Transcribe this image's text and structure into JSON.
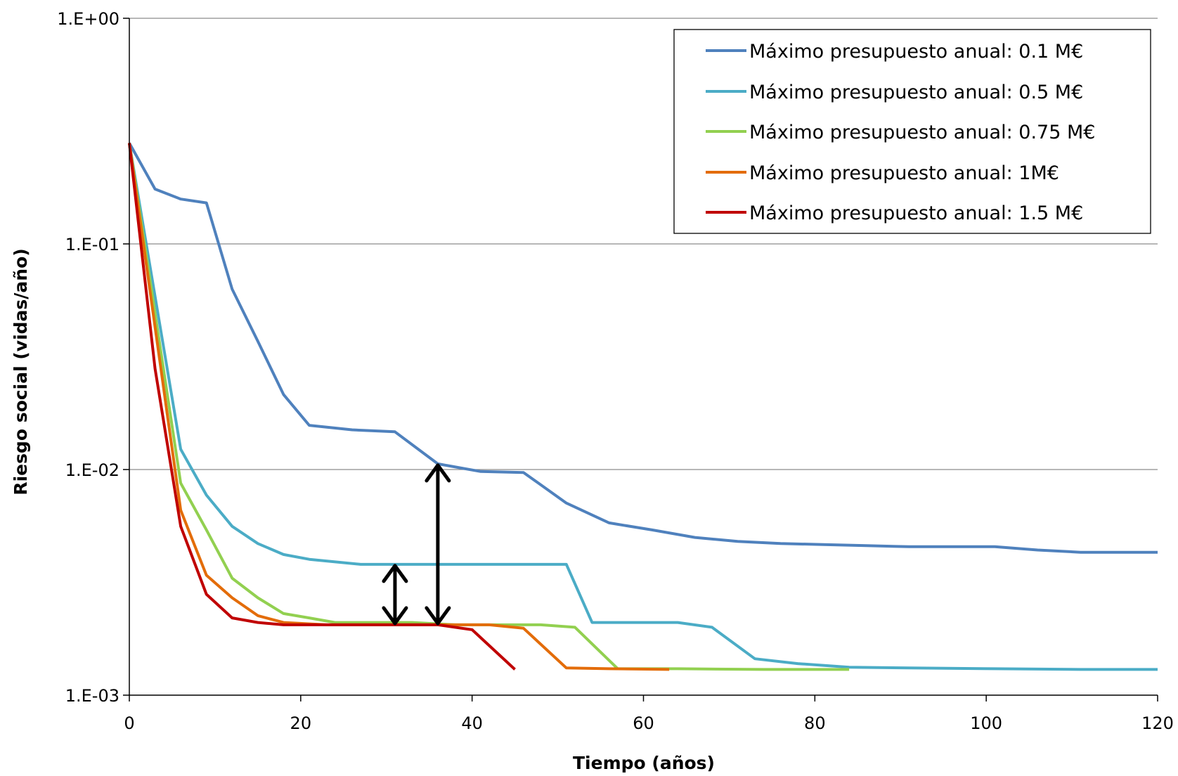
{
  "chart_data": {
    "type": "line",
    "title": "",
    "xlabel": "Tiempo (años)",
    "ylabel": "Riesgo social (vidas/año)",
    "xlim": [
      0,
      120
    ],
    "ylim": [
      0.001,
      1
    ],
    "yscale": "log",
    "x_ticks": [
      0,
      20,
      40,
      60,
      80,
      100,
      120
    ],
    "x_tick_labels": [
      "0",
      "20",
      "40",
      "60",
      "80",
      "100",
      "120"
    ],
    "y_ticks": [
      1,
      0.1,
      0.01,
      0.001
    ],
    "y_tick_labels": [
      "1.E+00",
      "1.E-01",
      "1.E-02",
      "1.E-03"
    ],
    "grid": "horizontal major",
    "legend_position": "top-right",
    "series": [
      {
        "name": "Máximo presupuesto anual: 0.1 M€",
        "color": "#4f81bd",
        "points": [
          [
            0,
            0.28
          ],
          [
            3,
            0.175
          ],
          [
            6,
            0.158
          ],
          [
            9,
            0.152
          ],
          [
            12,
            0.063
          ],
          [
            15,
            0.037
          ],
          [
            18,
            0.0215
          ],
          [
            21,
            0.0157
          ],
          [
            26,
            0.015
          ],
          [
            31,
            0.0147
          ],
          [
            36,
            0.0106
          ],
          [
            41,
            0.0098
          ],
          [
            46,
            0.0097
          ],
          [
            51,
            0.0071
          ],
          [
            56,
            0.0058
          ],
          [
            61,
            0.0054
          ],
          [
            66,
            0.005
          ],
          [
            71,
            0.0048
          ],
          [
            76,
            0.0047
          ],
          [
            81,
            0.00465
          ],
          [
            86,
            0.0046
          ],
          [
            91,
            0.00455
          ],
          [
            96,
            0.00455
          ],
          [
            101,
            0.00455
          ],
          [
            106,
            0.0044
          ],
          [
            111,
            0.0043
          ],
          [
            120,
            0.0043
          ]
        ]
      },
      {
        "name": "Máximo presupuesto anual: 0.5 M€",
        "color": "#4bacc6",
        "points": [
          [
            0,
            0.28
          ],
          [
            6,
            0.0123
          ],
          [
            9,
            0.0077
          ],
          [
            12,
            0.0056
          ],
          [
            15,
            0.0047
          ],
          [
            18,
            0.0042
          ],
          [
            21,
            0.004
          ],
          [
            27,
            0.0038
          ],
          [
            31,
            0.0038
          ],
          [
            36,
            0.0038
          ],
          [
            41,
            0.0038
          ],
          [
            46,
            0.0038
          ],
          [
            51,
            0.0038
          ],
          [
            54,
            0.0021
          ],
          [
            57,
            0.0021
          ],
          [
            64,
            0.0021
          ],
          [
            68,
            0.002
          ],
          [
            73,
            0.00145
          ],
          [
            78,
            0.00138
          ],
          [
            84,
            0.00133
          ],
          [
            91,
            0.00132
          ],
          [
            101,
            0.00131
          ],
          [
            111,
            0.0013
          ],
          [
            120,
            0.0013
          ]
        ]
      },
      {
        "name": "Máximo presupuesto anual: 0.75 M€",
        "color": "#92d050",
        "points": [
          [
            0,
            0.28
          ],
          [
            6,
            0.0087
          ],
          [
            9,
            0.0054
          ],
          [
            12,
            0.0033
          ],
          [
            15,
            0.0027
          ],
          [
            18,
            0.0023
          ],
          [
            21,
            0.0022
          ],
          [
            24,
            0.0021
          ],
          [
            33,
            0.0021
          ],
          [
            38,
            0.00205
          ],
          [
            48,
            0.00205
          ],
          [
            52,
            0.002
          ],
          [
            57,
            0.00131
          ],
          [
            64,
            0.00131
          ],
          [
            74,
            0.0013
          ],
          [
            84,
            0.0013
          ]
        ]
      },
      {
        "name": "Máximo presupuesto anual: 1M€",
        "color": "#e36c09",
        "points": [
          [
            0,
            0.28
          ],
          [
            6,
            0.0066
          ],
          [
            9,
            0.0034
          ],
          [
            12,
            0.0027
          ],
          [
            15,
            0.00225
          ],
          [
            18,
            0.0021
          ],
          [
            23,
            0.00205
          ],
          [
            36,
            0.00205
          ],
          [
            42,
            0.00205
          ],
          [
            46,
            0.00198
          ],
          [
            51,
            0.00132
          ],
          [
            56,
            0.00131
          ],
          [
            63,
            0.0013
          ]
        ]
      },
      {
        "name": "Máximo presupuesto anual: 1.5 M€",
        "color": "#c00000",
        "points": [
          [
            0,
            0.28
          ],
          [
            3,
            0.028
          ],
          [
            6,
            0.0056
          ],
          [
            9,
            0.0028
          ],
          [
            12,
            0.0022
          ],
          [
            15,
            0.0021
          ],
          [
            18,
            0.00205
          ],
          [
            25,
            0.00205
          ],
          [
            36,
            0.00205
          ],
          [
            40,
            0.00195
          ],
          [
            45,
            0.0013
          ]
        ]
      }
    ],
    "annotations": [
      {
        "type": "double-arrow",
        "x": 31,
        "y_from": 0.00205,
        "y_to": 0.0038,
        "color": "#000000"
      },
      {
        "type": "double-arrow",
        "x": 36,
        "y_from": 0.00205,
        "y_to": 0.0106,
        "color": "#000000"
      }
    ]
  }
}
